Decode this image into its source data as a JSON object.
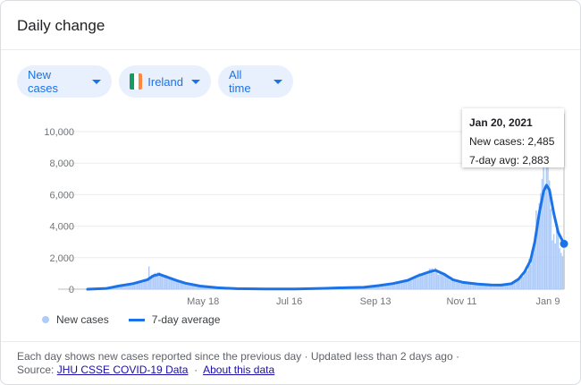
{
  "header": {
    "title": "Daily change"
  },
  "filters": [
    {
      "label": "New cases"
    },
    {
      "label": "Ireland",
      "flag": [
        "#169b62",
        "#ffffff",
        "#ff883e"
      ]
    },
    {
      "label": "All time"
    }
  ],
  "tooltip": {
    "date": "Jan 20, 2021",
    "new_cases_label": "New cases: 2,485",
    "avg_label": "7-day avg: 2,883"
  },
  "legend": {
    "bars": "New cases",
    "line": "7-day average"
  },
  "footer": {
    "line1": "Each day shows new cases reported since the previous day · Updated less than 2 days ago  ·",
    "source_label": "Source:",
    "source_link": "JHU CSSE COVID-19 Data",
    "about_link": "About this data"
  },
  "colors": {
    "accent": "#1a73e8",
    "bars": "#aecbfa",
    "chip_bg": "#e8f0fe"
  },
  "chart_data": {
    "type": "bar",
    "series": [
      {
        "name": "New cases",
        "type": "bar"
      },
      {
        "name": "7-day average",
        "type": "line"
      }
    ],
    "x_range": [
      "2020-02-29",
      "2021-01-20"
    ],
    "x_ticks": [
      {
        "label": "May 18",
        "date": "2020-05-18"
      },
      {
        "label": "Jul 16",
        "date": "2020-07-16"
      },
      {
        "label": "Sep 13",
        "date": "2020-09-13"
      },
      {
        "label": "Nov 11",
        "date": "2020-11-11"
      },
      {
        "label": "Jan 9",
        "date": "2021-01-09"
      }
    ],
    "y_ticks": [
      "0",
      "2,000",
      "4,000",
      "6,000",
      "8,000",
      "10,000"
    ],
    "ylim": [
      0,
      10000
    ],
    "grid": true,
    "avg_points": [
      [
        "2020-02-29",
        0
      ],
      [
        "2020-03-13",
        50
      ],
      [
        "2020-03-21",
        200
      ],
      [
        "2020-03-31",
        350
      ],
      [
        "2020-04-10",
        600
      ],
      [
        "2020-04-14",
        850
      ],
      [
        "2020-04-18",
        950
      ],
      [
        "2020-04-24",
        750
      ],
      [
        "2020-04-30",
        550
      ],
      [
        "2020-05-06",
        380
      ],
      [
        "2020-05-16",
        200
      ],
      [
        "2020-05-28",
        90
      ],
      [
        "2020-06-10",
        35
      ],
      [
        "2020-06-30",
        15
      ],
      [
        "2020-07-20",
        15
      ],
      [
        "2020-08-10",
        55
      ],
      [
        "2020-08-25",
        100
      ],
      [
        "2020-09-05",
        120
      ],
      [
        "2020-09-15",
        230
      ],
      [
        "2020-09-25",
        360
      ],
      [
        "2020-10-05",
        560
      ],
      [
        "2020-10-12",
        850
      ],
      [
        "2020-10-20",
        1100
      ],
      [
        "2020-10-24",
        1200
      ],
      [
        "2020-10-30",
        950
      ],
      [
        "2020-11-05",
        600
      ],
      [
        "2020-11-12",
        430
      ],
      [
        "2020-11-22",
        330
      ],
      [
        "2020-12-01",
        270
      ],
      [
        "2020-12-08",
        260
      ],
      [
        "2020-12-15",
        350
      ],
      [
        "2020-12-20",
        650
      ],
      [
        "2020-12-24",
        1100
      ],
      [
        "2020-12-28",
        1800
      ],
      [
        "2020-12-31",
        3000
      ],
      [
        "2021-01-03",
        4800
      ],
      [
        "2021-01-06",
        6200
      ],
      [
        "2021-01-08",
        6600
      ],
      [
        "2021-01-10",
        6300
      ],
      [
        "2021-01-13",
        4800
      ],
      [
        "2021-01-16",
        3600
      ],
      [
        "2021-01-20",
        2883
      ]
    ],
    "highlight": {
      "date": "2021-01-20",
      "new_cases": 2485,
      "avg": 2883
    },
    "bar_spikes": [
      [
        "2020-04-11",
        1450
      ],
      [
        "2020-12-31",
        3400
      ],
      [
        "2021-01-01",
        5000
      ],
      [
        "2021-01-02",
        4000
      ],
      [
        "2021-01-04",
        6100
      ],
      [
        "2021-01-05",
        7000
      ],
      [
        "2021-01-06",
        7800
      ],
      [
        "2021-01-07",
        6200
      ],
      [
        "2021-01-08",
        8200
      ],
      [
        "2021-01-09",
        7900
      ],
      [
        "2021-01-10",
        6900
      ],
      [
        "2021-01-11",
        5100
      ],
      [
        "2021-01-12",
        3100
      ],
      [
        "2021-01-13",
        3500
      ],
      [
        "2021-01-14",
        2900
      ],
      [
        "2021-01-15",
        3900
      ],
      [
        "2021-01-16",
        3600
      ],
      [
        "2021-01-17",
        2600
      ],
      [
        "2021-01-18",
        2300
      ],
      [
        "2021-01-19",
        2100
      ],
      [
        "2021-01-20",
        2485
      ]
    ]
  }
}
